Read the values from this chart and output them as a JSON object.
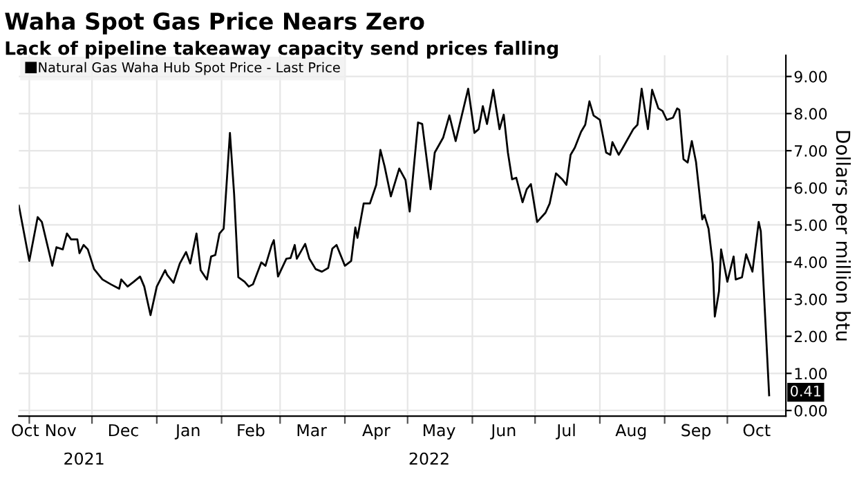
{
  "chart_data": {
    "type": "line",
    "title": "Waha Spot Gas Price Nears Zero",
    "subtitle": "Lack of pipeline takeaway capacity send prices falling",
    "ylabel": "Dollars per million btu",
    "x": [
      "2021-10-27",
      "2021-11-01",
      "2021-11-05",
      "2021-11-07",
      "2021-11-12",
      "2021-11-14",
      "2021-11-17",
      "2021-11-19",
      "2021-11-21",
      "2021-11-24",
      "2021-11-25",
      "2021-11-27",
      "2021-11-29",
      "2021-12-02",
      "2021-12-06",
      "2021-12-10",
      "2021-12-14",
      "2021-12-15",
      "2021-12-18",
      "2021-12-21",
      "2021-12-24",
      "2021-12-26",
      "2021-12-29",
      "2022-01-01",
      "2022-01-05",
      "2022-01-06",
      "2022-01-09",
      "2022-01-12",
      "2022-01-15",
      "2022-01-17",
      "2022-01-20",
      "2022-01-22",
      "2022-01-25",
      "2022-01-27",
      "2022-01-29",
      "2022-01-31",
      "2022-02-02",
      "2022-02-05",
      "2022-02-07",
      "2022-02-09",
      "2022-02-12",
      "2022-02-14",
      "2022-02-16",
      "2022-02-20",
      "2022-02-22",
      "2022-02-25",
      "2022-02-26",
      "2022-02-28",
      "2022-03-04",
      "2022-03-06",
      "2022-03-08",
      "2022-03-09",
      "2022-03-13",
      "2022-03-15",
      "2022-03-18",
      "2022-03-21",
      "2022-03-24",
      "2022-03-26",
      "2022-03-28",
      "2022-04-01",
      "2022-04-04",
      "2022-04-06",
      "2022-04-07",
      "2022-04-10",
      "2022-04-13",
      "2022-04-16",
      "2022-04-18",
      "2022-04-20",
      "2022-04-23",
      "2022-04-27",
      "2022-04-30",
      "2022-05-02",
      "2022-05-06",
      "2022-05-08",
      "2022-05-12",
      "2022-05-14",
      "2022-05-18",
      "2022-05-21",
      "2022-05-24",
      "2022-05-30",
      "2022-06-02",
      "2022-06-04",
      "2022-06-06",
      "2022-06-08",
      "2022-06-11",
      "2022-06-14",
      "2022-06-16",
      "2022-06-18",
      "2022-06-20",
      "2022-06-22",
      "2022-06-25",
      "2022-06-27",
      "2022-06-29",
      "2022-07-02",
      "2022-07-06",
      "2022-07-08",
      "2022-07-11",
      "2022-07-14",
      "2022-07-16",
      "2022-07-18",
      "2022-07-20",
      "2022-07-23",
      "2022-07-25",
      "2022-07-27",
      "2022-07-29",
      "2022-08-01",
      "2022-08-04",
      "2022-08-06",
      "2022-08-07",
      "2022-08-10",
      "2022-08-12",
      "2022-08-17",
      "2022-08-19",
      "2022-08-21",
      "2022-08-24",
      "2022-08-26",
      "2022-08-29",
      "2022-08-31",
      "2022-09-02",
      "2022-09-05",
      "2022-09-07",
      "2022-09-08",
      "2022-09-10",
      "2022-09-12",
      "2022-09-14",
      "2022-09-16",
      "2022-09-19",
      "2022-09-20",
      "2022-09-22",
      "2022-09-24",
      "2022-09-25",
      "2022-09-27",
      "2022-09-28",
      "2022-10-01",
      "2022-10-04",
      "2022-10-05",
      "2022-10-08",
      "2022-10-10",
      "2022-10-13",
      "2022-10-16",
      "2022-10-17",
      "2022-10-21"
    ],
    "series": [
      {
        "name": "Natural Gas Waha Hub Spot Price - Last Price",
        "color": "#000000",
        "values": [
          5.52,
          4.03,
          5.21,
          5.08,
          3.9,
          4.4,
          4.34,
          4.77,
          4.61,
          4.61,
          4.24,
          4.46,
          4.34,
          3.81,
          3.53,
          3.4,
          3.28,
          3.53,
          3.34,
          3.47,
          3.61,
          3.34,
          2.57,
          3.34,
          3.78,
          3.65,
          3.44,
          3.96,
          4.27,
          3.96,
          4.77,
          3.78,
          3.53,
          4.15,
          4.19,
          4.77,
          4.9,
          7.48,
          5.83,
          3.59,
          3.47,
          3.34,
          3.4,
          3.99,
          3.9,
          4.46,
          4.59,
          3.61,
          4.09,
          4.11,
          4.46,
          4.09,
          4.49,
          4.09,
          3.81,
          3.74,
          3.84,
          4.36,
          4.46,
          3.9,
          4.03,
          4.93,
          4.65,
          5.58,
          5.58,
          6.08,
          7.02,
          6.58,
          5.77,
          6.52,
          6.21,
          5.36,
          7.76,
          7.72,
          5.96,
          6.95,
          7.35,
          7.95,
          7.26,
          8.67,
          7.48,
          7.58,
          8.2,
          7.72,
          8.64,
          7.58,
          7.97,
          6.95,
          6.23,
          6.27,
          5.61,
          5.96,
          6.1,
          5.08,
          5.33,
          5.58,
          6.39,
          6.23,
          6.08,
          6.89,
          7.08,
          7.51,
          7.7,
          8.33,
          7.95,
          7.83,
          6.95,
          6.89,
          7.23,
          6.89,
          7.08,
          7.58,
          7.7,
          8.67,
          7.58,
          8.64,
          8.14,
          8.07,
          7.83,
          7.89,
          8.14,
          8.1,
          6.77,
          6.68,
          7.26,
          6.7,
          5.15,
          5.27,
          4.9,
          3.96,
          2.53,
          3.21,
          4.34,
          3.47,
          4.15,
          3.53,
          3.59,
          4.21,
          3.74,
          5.08,
          4.83,
          0.41
        ]
      }
    ],
    "xlim": [
      "2021-10-27",
      "2022-10-29"
    ],
    "xticks": [
      {
        "value": "2021-10-30",
        "label": "Oct"
      },
      {
        "value": "2021-11-01",
        "label": null
      },
      {
        "value": "2021-11-16",
        "label": "Nov"
      },
      {
        "value": "2021-12-01",
        "label": null
      },
      {
        "value": "2021-12-16",
        "label": "Dec"
      },
      {
        "value": "2022-01-01",
        "label": null
      },
      {
        "value": "2022-01-16",
        "label": "Jan"
      },
      {
        "value": "2022-02-01",
        "label": null
      },
      {
        "value": "2022-02-15",
        "label": "Feb"
      },
      {
        "value": "2022-03-01",
        "label": null
      },
      {
        "value": "2022-03-16",
        "label": "Mar"
      },
      {
        "value": "2022-04-01",
        "label": null
      },
      {
        "value": "2022-04-16",
        "label": "Apr"
      },
      {
        "value": "2022-05-01",
        "label": null
      },
      {
        "value": "2022-05-16",
        "label": "May"
      },
      {
        "value": "2022-06-01",
        "label": null
      },
      {
        "value": "2022-06-16",
        "label": "Jun"
      },
      {
        "value": "2022-07-01",
        "label": null
      },
      {
        "value": "2022-07-16",
        "label": "Jul"
      },
      {
        "value": "2022-08-01",
        "label": null
      },
      {
        "value": "2022-08-16",
        "label": "Aug"
      },
      {
        "value": "2022-09-01",
        "label": null
      },
      {
        "value": "2022-09-16",
        "label": "Sep"
      },
      {
        "value": "2022-10-01",
        "label": null
      },
      {
        "value": "2022-10-15",
        "label": "Oct"
      }
    ],
    "ylim": [
      -0.15,
      9.57
    ],
    "yticks": [
      {
        "value": 0,
        "label": "0.00"
      },
      {
        "value": 1,
        "label": "1.00"
      },
      {
        "value": 2,
        "label": "2.00"
      },
      {
        "value": 3,
        "label": "3.00"
      },
      {
        "value": 4,
        "label": "4.00"
      },
      {
        "value": 5,
        "label": "5.00"
      },
      {
        "value": 6,
        "label": "6.00"
      },
      {
        "value": 7,
        "label": "7.00"
      },
      {
        "value": 8,
        "label": "8.00"
      },
      {
        "value": 9,
        "label": "9.00"
      }
    ],
    "annotations": [
      "2021",
      "2022",
      {
        "text": "0.41",
        "x": "2022-10-21",
        "y": 0.41
      }
    ],
    "grid": true,
    "legend": "top left",
    "line_style": "solid",
    "marker": "none"
  }
}
